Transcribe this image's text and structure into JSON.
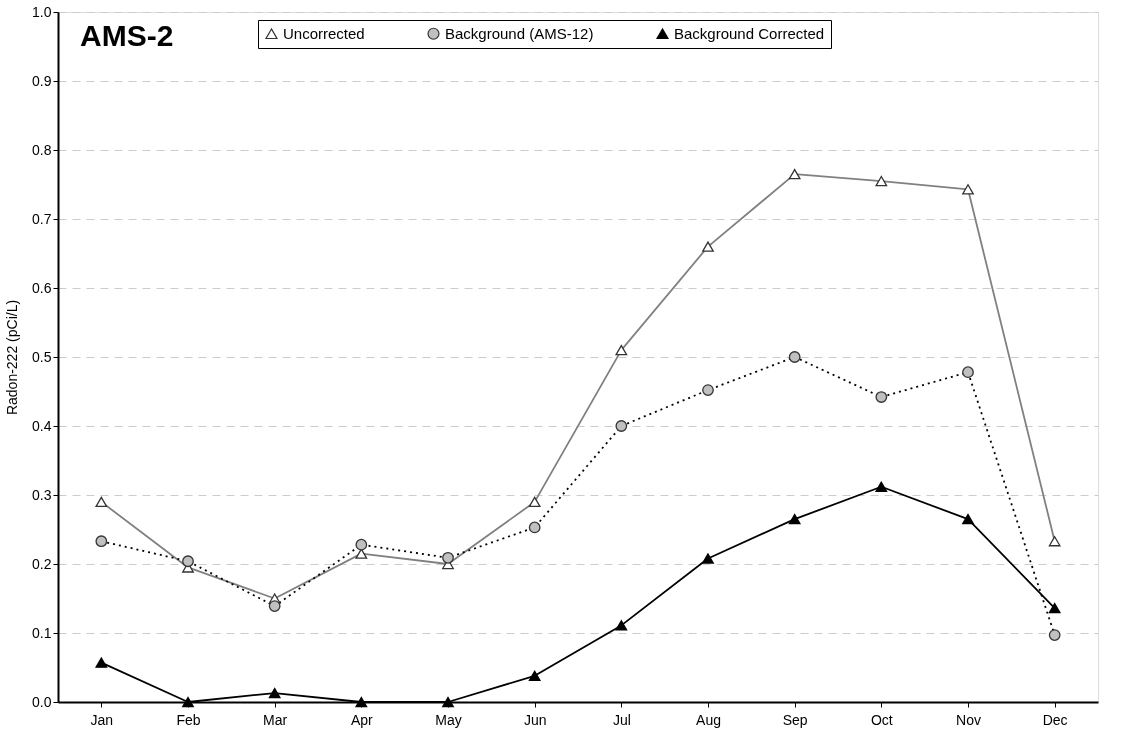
{
  "chart_data": {
    "type": "line",
    "title": "AMS-2",
    "ylabel": "Radon-222 (pCi/L)",
    "categories": [
      "Jan",
      "Feb",
      "Mar",
      "Apr",
      "May",
      "Jun",
      "Jul",
      "Aug",
      "Sep",
      "Oct",
      "Nov",
      "Dec"
    ],
    "series": [
      {
        "name": "Uncorrected",
        "color": "#808080",
        "marker": "triangle",
        "line_style": "solid",
        "values": [
          0.29,
          0.195,
          0.15,
          0.215,
          0.2,
          0.29,
          0.51,
          0.66,
          0.765,
          0.755,
          0.743,
          0.233
        ]
      },
      {
        "name": "Background (AMS-12)",
        "color": "#000000",
        "marker": "circle",
        "line_style": "dotted",
        "values": [
          0.233,
          0.204,
          0.139,
          0.228,
          0.209,
          0.253,
          0.4,
          0.452,
          0.5,
          0.442,
          0.478,
          0.097
        ]
      },
      {
        "name": "Background Corrected",
        "color": "#000000",
        "marker": "triangle",
        "line_style": "solid",
        "values": [
          0.057,
          0.0,
          0.013,
          0.0,
          0.0,
          0.038,
          0.111,
          0.208,
          0.265,
          0.312,
          0.265,
          0.136
        ]
      }
    ],
    "ylim": [
      0,
      1.0
    ],
    "yticks": [
      {
        "value": 0,
        "label": "0.0"
      },
      0.1,
      0.2,
      0.3,
      0.4,
      0.5,
      0.6,
      0.7,
      0.8,
      0.9,
      {
        "value": 1,
        "label": "1.0"
      }
    ],
    "grid": "y",
    "legend": "top"
  }
}
